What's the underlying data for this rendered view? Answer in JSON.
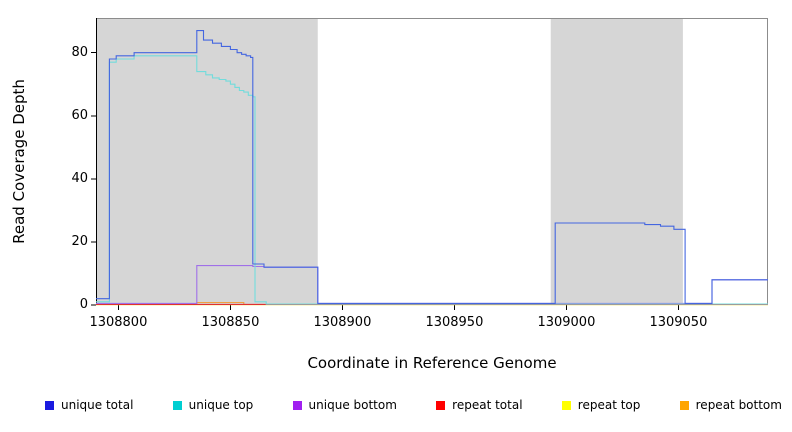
{
  "chart_data": {
    "type": "line",
    "title": "",
    "xlabel": "Coordinate in Reference Genome",
    "ylabel": "Read Coverage Depth",
    "xlim": [
      1308790,
      1309090
    ],
    "ylim": [
      0,
      91
    ],
    "x_ticks": [
      1308800,
      1308850,
      1308900,
      1308950,
      1309000,
      1309050
    ],
    "y_ticks": [
      0,
      20,
      40,
      60,
      80
    ],
    "grid": false,
    "legend_position": "bottom",
    "plot_bg": "#ffffff",
    "shaded_region_color": "#d6d6d6",
    "shaded_regions": [
      {
        "x0": 1308790,
        "x1": 1308889,
        "color": "#d6d6d6"
      },
      {
        "x0": 1308993,
        "x1": 1309052,
        "color": "#d6d6d6"
      }
    ],
    "series": [
      {
        "id": "unique-total",
        "name": "unique total",
        "color": "#1a1ae0",
        "line_color": "#4466e0",
        "step": true,
        "points": [
          [
            1308790,
            2
          ],
          [
            1308796,
            78
          ],
          [
            1308799,
            79
          ],
          [
            1308807,
            80
          ],
          [
            1308835,
            87
          ],
          [
            1308838,
            84
          ],
          [
            1308842,
            83
          ],
          [
            1308846,
            82
          ],
          [
            1308850,
            81
          ],
          [
            1308853,
            80
          ],
          [
            1308855,
            79.5
          ],
          [
            1308857,
            79
          ],
          [
            1308859,
            78.5
          ],
          [
            1308860,
            13
          ],
          [
            1308865,
            12
          ],
          [
            1308889,
            0.5
          ],
          [
            1308995,
            26
          ],
          [
            1309035,
            25.5
          ],
          [
            1309042,
            25
          ],
          [
            1309048,
            24
          ],
          [
            1309053,
            0.5
          ],
          [
            1309065,
            8
          ],
          [
            1309090,
            8
          ]
        ]
      },
      {
        "id": "unique-top",
        "name": "unique top",
        "color": "#00ced1",
        "line_color": "#72dcdc",
        "step": true,
        "points": [
          [
            1308790,
            1
          ],
          [
            1308796,
            77
          ],
          [
            1308799,
            78
          ],
          [
            1308807,
            79
          ],
          [
            1308835,
            74
          ],
          [
            1308839,
            73
          ],
          [
            1308842,
            72
          ],
          [
            1308845,
            71.5
          ],
          [
            1308848,
            71
          ],
          [
            1308850,
            70
          ],
          [
            1308852,
            69
          ],
          [
            1308854,
            68
          ],
          [
            1308856,
            67.5
          ],
          [
            1308858,
            66.5
          ],
          [
            1308860,
            66
          ],
          [
            1308861,
            1
          ],
          [
            1308866,
            0.3
          ],
          [
            1309090,
            0.3
          ]
        ]
      },
      {
        "id": "unique-bottom",
        "name": "unique bottom",
        "color": "#a020f0",
        "line_color": "#a070e8",
        "step": true,
        "points": [
          [
            1308790,
            0.5
          ],
          [
            1308835,
            12.5
          ],
          [
            1308860,
            12.2
          ],
          [
            1308865,
            12
          ],
          [
            1308889,
            0.5
          ],
          [
            1309065,
            8
          ],
          [
            1309090,
            8
          ]
        ]
      },
      {
        "id": "repeat-total",
        "name": "repeat total",
        "color": "#ff0000",
        "line_color": "#e03030",
        "step": true,
        "points": [
          [
            1308790,
            0.2
          ],
          [
            1309090,
            0.2
          ]
        ]
      },
      {
        "id": "repeat-top",
        "name": "repeat top",
        "color": "#ffff00",
        "line_color": "#f0e040",
        "step": true,
        "points": [
          [
            1308790,
            0.1
          ],
          [
            1309090,
            0.1
          ]
        ]
      },
      {
        "id": "repeat-bottom",
        "name": "repeat bottom",
        "color": "#ffa500",
        "line_color": "#f0a040",
        "step": true,
        "points": [
          [
            1308790,
            0.15
          ],
          [
            1308835,
            0.8
          ],
          [
            1308856,
            0.15
          ],
          [
            1309090,
            0.15
          ]
        ]
      }
    ]
  }
}
